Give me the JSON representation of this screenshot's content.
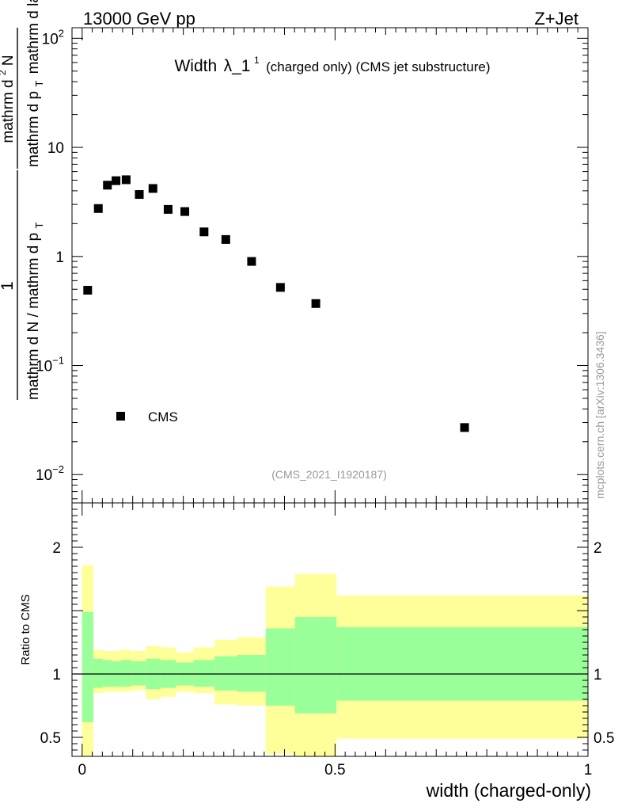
{
  "header": {
    "energy_label": "13000 GeV pp",
    "process_label": "Z+Jet"
  },
  "title": {
    "main": "Width",
    "symbol": "λ_1",
    "superscript": "1",
    "sub": "(charged only) (CMS jet substructure)"
  },
  "ylabel": {
    "numerator_one": "1",
    "denominator": "mathrm d N / mathrm d p",
    "denominator_sub": "T",
    "numerator_d2n": "mathrm d",
    "numerator_sup": "2",
    "numerator_n": "N",
    "lower_left": "mathrm d p",
    "lower_sub": "T",
    "lower_right": "mathrm d lambda"
  },
  "watermark": {
    "analysis_id": "(CMS_2021_I1920187)",
    "side_label": "mcplots.cern.ch [arXiv:1306.3436]"
  },
  "xlabel": "width (charged-only)",
  "ratio_ylabel": "Ratio to CMS",
  "legend": {
    "label": "CMS"
  },
  "chart_data": {
    "type": "scatter",
    "title": "Width λ_1^1 (charged only) (CMS jet substructure)",
    "xlabel": "width (charged-only)",
    "ylabel": "1/N dN/dp_T d^2N/(dp_T dλ)",
    "yscale": "log",
    "xlim": [
      -0.02,
      1.0
    ],
    "ylim": [
      0.0055,
      125
    ],
    "x_ticks": [
      {
        "value": 0,
        "label": "0"
      },
      {
        "value": 0.5,
        "label": "0.5"
      },
      {
        "value": 1,
        "label": "1"
      }
    ],
    "y_ticks": [
      {
        "value": 0.01,
        "base": "10",
        "exp": "−2"
      },
      {
        "value": 0.1,
        "base": "10",
        "exp": "−1"
      },
      {
        "value": 1,
        "base": "1",
        "exp": ""
      },
      {
        "value": 10,
        "base": "10",
        "exp": ""
      },
      {
        "value": 100,
        "base": "10",
        "exp": "2"
      }
    ],
    "series": [
      {
        "name": "CMS",
        "points": [
          {
            "x": 0.011,
            "y": 0.49
          },
          {
            "x": 0.032,
            "y": 2.75
          },
          {
            "x": 0.05,
            "y": 4.5
          },
          {
            "x": 0.067,
            "y": 4.95
          },
          {
            "x": 0.087,
            "y": 5.05
          },
          {
            "x": 0.113,
            "y": 3.7
          },
          {
            "x": 0.14,
            "y": 4.2
          },
          {
            "x": 0.17,
            "y": 2.7
          },
          {
            "x": 0.203,
            "y": 2.58
          },
          {
            "x": 0.241,
            "y": 1.68
          },
          {
            "x": 0.284,
            "y": 1.43
          },
          {
            "x": 0.335,
            "y": 0.9
          },
          {
            "x": 0.392,
            "y": 0.52
          },
          {
            "x": 0.462,
            "y": 0.37
          },
          {
            "x": 0.756,
            "y": 0.027
          }
        ]
      }
    ],
    "ratio": {
      "ylabel": "Ratio to CMS",
      "ylim": [
        0.35,
        2.35
      ],
      "y_ticks": [
        {
          "value": 0.5,
          "label": "0.5"
        },
        {
          "value": 1,
          "label": "1"
        },
        {
          "value": 2,
          "label": "2"
        }
      ],
      "reference": 1,
      "bands": [
        {
          "x0": 0.0,
          "x1": 0.022,
          "outer": [
            0.35,
            1.86
          ],
          "inner": [
            0.62,
            1.49
          ]
        },
        {
          "x0": 0.022,
          "x1": 0.041,
          "outer": [
            0.85,
            1.19
          ],
          "inner": [
            0.89,
            1.12
          ]
        },
        {
          "x0": 0.041,
          "x1": 0.059,
          "outer": [
            0.86,
            1.18
          ],
          "inner": [
            0.9,
            1.11
          ]
        },
        {
          "x0": 0.059,
          "x1": 0.076,
          "outer": [
            0.86,
            1.18
          ],
          "inner": [
            0.9,
            1.1
          ]
        },
        {
          "x0": 0.076,
          "x1": 0.097,
          "outer": [
            0.86,
            1.19
          ],
          "inner": [
            0.9,
            1.11
          ]
        },
        {
          "x0": 0.097,
          "x1": 0.126,
          "outer": [
            0.87,
            1.18
          ],
          "inner": [
            0.91,
            1.1
          ]
        },
        {
          "x0": 0.126,
          "x1": 0.155,
          "outer": [
            0.8,
            1.22
          ],
          "inner": [
            0.88,
            1.12
          ]
        },
        {
          "x0": 0.155,
          "x1": 0.186,
          "outer": [
            0.82,
            1.21
          ],
          "inner": [
            0.89,
            1.11
          ]
        },
        {
          "x0": 0.186,
          "x1": 0.22,
          "outer": [
            0.86,
            1.17
          ],
          "inner": [
            0.91,
            1.09
          ]
        },
        {
          "x0": 0.22,
          "x1": 0.262,
          "outer": [
            0.85,
            1.21
          ],
          "inner": [
            0.9,
            1.11
          ]
        },
        {
          "x0": 0.262,
          "x1": 0.307,
          "outer": [
            0.76,
            1.27
          ],
          "inner": [
            0.87,
            1.14
          ]
        },
        {
          "x0": 0.307,
          "x1": 0.363,
          "outer": [
            0.75,
            1.29
          ],
          "inner": [
            0.86,
            1.15
          ]
        },
        {
          "x0": 0.363,
          "x1": 0.421,
          "outer": [
            0.37,
            1.69
          ],
          "inner": [
            0.75,
            1.36
          ]
        },
        {
          "x0": 0.421,
          "x1": 0.503,
          "outer": [
            0.35,
            1.79
          ],
          "inner": [
            0.69,
            1.45
          ]
        },
        {
          "x0": 0.503,
          "x1": 1.0,
          "outer": [
            0.49,
            1.62
          ],
          "inner": [
            0.79,
            1.37
          ]
        }
      ]
    }
  },
  "colors": {
    "outer_band": "#ffff99",
    "inner_band": "#99ff99",
    "marker": "#000000",
    "axis": "#000000",
    "watermark": "#999999"
  }
}
